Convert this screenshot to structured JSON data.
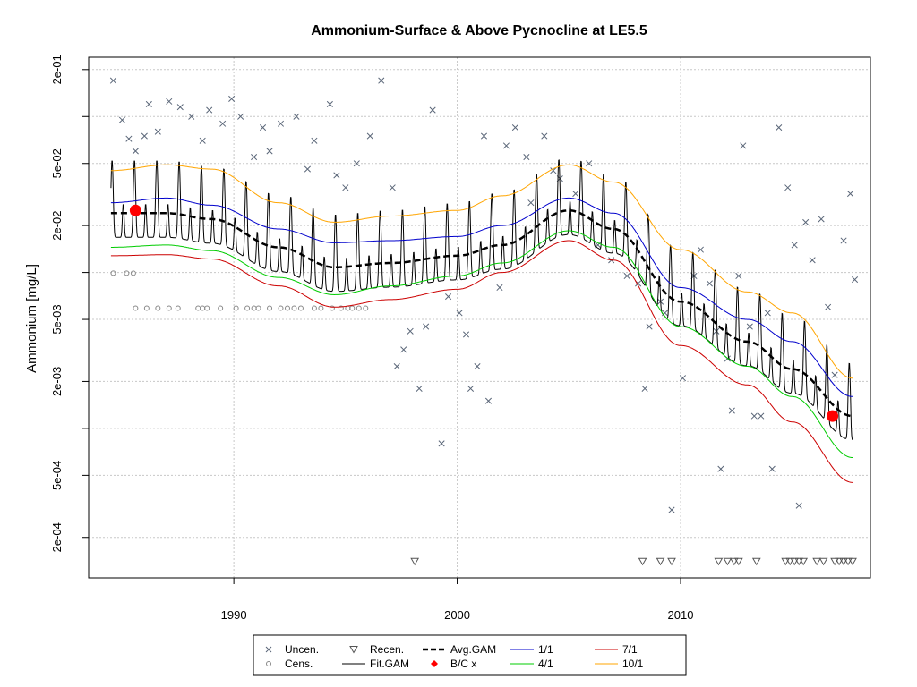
{
  "chart_data": {
    "type": "scatter",
    "title": "Ammonium-Surface & Above Pycnocline at LE5.5",
    "xlabel": "",
    "ylabel": "Ammonium [mg/L]",
    "y_scale": "log10",
    "ylim": [
      0.00011,
      0.24
    ],
    "xlim": [
      1983.5,
      2018.5
    ],
    "grid": true,
    "x_ticks": [
      1990,
      2000,
      2010
    ],
    "x_tick_labels": [
      "1990",
      "2000",
      "2010"
    ],
    "y_ticks": [
      0.0002,
      0.0005,
      0.002,
      0.005,
      0.02,
      0.05,
      0.2
    ],
    "y_tick_labels": [
      "2e-04",
      "5e-04",
      "2e-03",
      "5e-03",
      "2e-02",
      "5e-02",
      "2e-01"
    ],
    "y_minor_ticks": [
      0.001,
      0.01,
      0.1
    ],
    "legend_position": "bottom",
    "legend": [
      {
        "label": "Uncen.",
        "symbol": "x",
        "color": "#5a6678"
      },
      {
        "label": "Cens.",
        "symbol": "circle",
        "color": "#888888"
      },
      {
        "label": "Recen.",
        "symbol": "triangle-down",
        "color": "#555555"
      },
      {
        "label": "Fit.GAM",
        "symbol": "line",
        "color": "#000000"
      },
      {
        "label": "Avg.GAM",
        "symbol": "dashed-line",
        "color": "#000000"
      },
      {
        "label": "B/C x",
        "symbol": "dot",
        "color": "#ff0000"
      },
      {
        "label": "1/1",
        "symbol": "line",
        "color": "#0000cc"
      },
      {
        "label": "4/1",
        "symbol": "line",
        "color": "#00cc00"
      },
      {
        "label": "7/1",
        "symbol": "line",
        "color": "#cc0000"
      },
      {
        "label": "10/1",
        "symbol": "line",
        "color": "#ffa500"
      }
    ],
    "series": [
      {
        "name": "1/1",
        "color": "#0000cc",
        "x": [
          1984.5,
          1987,
          1989,
          1992,
          1994.5,
          1997,
          2000,
          2002,
          2005,
          2007,
          2010,
          2013,
          2015,
          2017.7
        ],
        "y": [
          0.028,
          0.03,
          0.027,
          0.019,
          0.0155,
          0.016,
          0.017,
          0.02,
          0.03,
          0.024,
          0.008,
          0.005,
          0.0036,
          0.0016
        ]
      },
      {
        "name": "4/1",
        "color": "#00cc00",
        "x": [
          1984.5,
          1987,
          1989,
          1992,
          1994.5,
          1997,
          2000,
          2002,
          2005,
          2007,
          2010,
          2013,
          2015,
          2017.7
        ],
        "y": [
          0.0145,
          0.015,
          0.0138,
          0.0093,
          0.0072,
          0.0082,
          0.0095,
          0.0115,
          0.0185,
          0.0145,
          0.0045,
          0.0025,
          0.0016,
          0.00065
        ]
      },
      {
        "name": "7/1",
        "color": "#cc0000",
        "x": [
          1984.5,
          1987,
          1989,
          1992,
          1994.5,
          1997,
          2000,
          2002,
          2005,
          2007,
          2010,
          2013,
          2015,
          2017.7
        ],
        "y": [
          0.0128,
          0.013,
          0.0122,
          0.0082,
          0.006,
          0.0067,
          0.0078,
          0.01,
          0.016,
          0.012,
          0.0034,
          0.0019,
          0.0011,
          0.00045
        ]
      },
      {
        "name": "10/1",
        "color": "#ffa500",
        "x": [
          1984.5,
          1987,
          1989,
          1992,
          1994.5,
          1997,
          2000,
          2002,
          2005,
          2007,
          2010,
          2013,
          2015,
          2017.7
        ],
        "y": [
          0.045,
          0.049,
          0.046,
          0.028,
          0.021,
          0.023,
          0.025,
          0.031,
          0.049,
          0.038,
          0.014,
          0.0075,
          0.0055,
          0.0021
        ]
      },
      {
        "name": "Avg.GAM",
        "color": "#000000",
        "dashed": true,
        "x": [
          1984.5,
          1987,
          1989,
          1992,
          1994.5,
          1997,
          2000,
          2002,
          2005,
          2007,
          2010,
          2013,
          2015,
          2017.7
        ],
        "y": [
          0.024,
          0.024,
          0.022,
          0.0145,
          0.0108,
          0.0115,
          0.0128,
          0.015,
          0.025,
          0.019,
          0.0065,
          0.0036,
          0.0024,
          0.0012
        ]
      }
    ],
    "fit_gam": {
      "x_start": 1984.5,
      "x_end": 2017.7,
      "peak_factor": 2.2,
      "trough_factor": 0.7
    },
    "bc_points": [
      {
        "x": 1985.6,
        "y": 0.025
      },
      {
        "x": 2016.8,
        "y": 0.0012
      }
    ],
    "uncensored": [
      {
        "x": 1984.6,
        "y": 0.17
      },
      {
        "x": 1985.0,
        "y": 0.095
      },
      {
        "x": 1985.3,
        "y": 0.072
      },
      {
        "x": 1985.6,
        "y": 0.06
      },
      {
        "x": 1986.0,
        "y": 0.075
      },
      {
        "x": 1986.2,
        "y": 0.12
      },
      {
        "x": 1986.6,
        "y": 0.08
      },
      {
        "x": 1987.1,
        "y": 0.125
      },
      {
        "x": 1987.6,
        "y": 0.115
      },
      {
        "x": 1988.1,
        "y": 0.1
      },
      {
        "x": 1988.6,
        "y": 0.07
      },
      {
        "x": 1988.9,
        "y": 0.11
      },
      {
        "x": 1989.5,
        "y": 0.09
      },
      {
        "x": 1989.9,
        "y": 0.13
      },
      {
        "x": 1990.3,
        "y": 0.1
      },
      {
        "x": 1990.9,
        "y": 0.055
      },
      {
        "x": 1991.3,
        "y": 0.085
      },
      {
        "x": 1991.6,
        "y": 0.06
      },
      {
        "x": 1992.1,
        "y": 0.09
      },
      {
        "x": 1992.8,
        "y": 0.1
      },
      {
        "x": 1993.3,
        "y": 0.046
      },
      {
        "x": 1993.6,
        "y": 0.07
      },
      {
        "x": 1994.3,
        "y": 0.12
      },
      {
        "x": 1994.6,
        "y": 0.042
      },
      {
        "x": 1995.0,
        "y": 0.035
      },
      {
        "x": 1995.5,
        "y": 0.05
      },
      {
        "x": 1996.1,
        "y": 0.075
      },
      {
        "x": 1996.6,
        "y": 0.17
      },
      {
        "x": 1997.1,
        "y": 0.035
      },
      {
        "x": 1997.3,
        "y": 0.0025
      },
      {
        "x": 1997.6,
        "y": 0.0032
      },
      {
        "x": 1997.9,
        "y": 0.0042
      },
      {
        "x": 1998.3,
        "y": 0.0018
      },
      {
        "x": 1998.6,
        "y": 0.0045
      },
      {
        "x": 1998.9,
        "y": 0.11
      },
      {
        "x": 1999.3,
        "y": 0.0008
      },
      {
        "x": 1999.6,
        "y": 0.007
      },
      {
        "x": 2000.1,
        "y": 0.0055
      },
      {
        "x": 2000.4,
        "y": 0.004
      },
      {
        "x": 2000.6,
        "y": 0.0018
      },
      {
        "x": 2000.9,
        "y": 0.0025
      },
      {
        "x": 2001.2,
        "y": 0.075
      },
      {
        "x": 2001.4,
        "y": 0.0015
      },
      {
        "x": 2001.9,
        "y": 0.008
      },
      {
        "x": 2002.2,
        "y": 0.065
      },
      {
        "x": 2002.6,
        "y": 0.085
      },
      {
        "x": 2003.1,
        "y": 0.055
      },
      {
        "x": 2003.3,
        "y": 0.028
      },
      {
        "x": 2003.9,
        "y": 0.075
      },
      {
        "x": 2004.3,
        "y": 0.045
      },
      {
        "x": 2004.6,
        "y": 0.04
      },
      {
        "x": 2005.3,
        "y": 0.032
      },
      {
        "x": 2005.9,
        "y": 0.05
      },
      {
        "x": 2006.3,
        "y": 0.015
      },
      {
        "x": 2006.9,
        "y": 0.012
      },
      {
        "x": 2007.6,
        "y": 0.0095
      },
      {
        "x": 2008.1,
        "y": 0.0085
      },
      {
        "x": 2008.4,
        "y": 0.0018
      },
      {
        "x": 2008.6,
        "y": 0.0045
      },
      {
        "x": 2009.1,
        "y": 0.0065
      },
      {
        "x": 2009.3,
        "y": 0.0055
      },
      {
        "x": 2009.6,
        "y": 0.0003
      },
      {
        "x": 2010.1,
        "y": 0.0021
      },
      {
        "x": 2010.6,
        "y": 0.0095
      },
      {
        "x": 2010.9,
        "y": 0.014
      },
      {
        "x": 2011.3,
        "y": 0.0085
      },
      {
        "x": 2011.6,
        "y": 0.0042
      },
      {
        "x": 2011.8,
        "y": 0.00055
      },
      {
        "x": 2012.1,
        "y": 0.0028
      },
      {
        "x": 2012.3,
        "y": 0.0013
      },
      {
        "x": 2012.6,
        "y": 0.0095
      },
      {
        "x": 2012.8,
        "y": 0.065
      },
      {
        "x": 2013.1,
        "y": 0.0045
      },
      {
        "x": 2013.3,
        "y": 0.0012
      },
      {
        "x": 2013.6,
        "y": 0.0012
      },
      {
        "x": 2013.9,
        "y": 0.0055
      },
      {
        "x": 2014.1,
        "y": 0.00055
      },
      {
        "x": 2014.4,
        "y": 0.085
      },
      {
        "x": 2014.8,
        "y": 0.035
      },
      {
        "x": 2015.1,
        "y": 0.015
      },
      {
        "x": 2015.3,
        "y": 0.00032
      },
      {
        "x": 2015.6,
        "y": 0.021
      },
      {
        "x": 2015.9,
        "y": 0.012
      },
      {
        "x": 2016.3,
        "y": 0.022
      },
      {
        "x": 2016.6,
        "y": 0.006
      },
      {
        "x": 2016.9,
        "y": 0.0022
      },
      {
        "x": 2017.3,
        "y": 0.016
      },
      {
        "x": 2017.6,
        "y": 0.032
      },
      {
        "x": 2017.8,
        "y": 0.009
      }
    ],
    "censored": [
      {
        "x": 1984.6,
        "y": 0.0099
      },
      {
        "x": 1985.2,
        "y": 0.0099
      },
      {
        "x": 1985.5,
        "y": 0.0099
      },
      {
        "x": 1985.6,
        "y": 0.0059
      },
      {
        "x": 1986.1,
        "y": 0.0059
      },
      {
        "x": 1986.6,
        "y": 0.0059
      },
      {
        "x": 1987.1,
        "y": 0.0059
      },
      {
        "x": 1987.5,
        "y": 0.0059
      },
      {
        "x": 1988.4,
        "y": 0.0059
      },
      {
        "x": 1988.6,
        "y": 0.0059
      },
      {
        "x": 1988.8,
        "y": 0.0059
      },
      {
        "x": 1989.4,
        "y": 0.0059
      },
      {
        "x": 1990.1,
        "y": 0.0059
      },
      {
        "x": 1990.6,
        "y": 0.0059
      },
      {
        "x": 1990.9,
        "y": 0.0059
      },
      {
        "x": 1991.1,
        "y": 0.0059
      },
      {
        "x": 1991.6,
        "y": 0.0059
      },
      {
        "x": 1992.1,
        "y": 0.0059
      },
      {
        "x": 1992.4,
        "y": 0.0059
      },
      {
        "x": 1992.7,
        "y": 0.0059
      },
      {
        "x": 1993.0,
        "y": 0.0059
      },
      {
        "x": 1993.6,
        "y": 0.0059
      },
      {
        "x": 1993.9,
        "y": 0.0059
      },
      {
        "x": 1994.4,
        "y": 0.0059
      },
      {
        "x": 1994.8,
        "y": 0.0059
      },
      {
        "x": 1995.1,
        "y": 0.0059
      },
      {
        "x": 1995.3,
        "y": 0.0059
      },
      {
        "x": 1995.6,
        "y": 0.0059
      },
      {
        "x": 1995.9,
        "y": 0.0059
      }
    ],
    "recensored": [
      {
        "x": 1998.1,
        "y": 0.00014
      },
      {
        "x": 2008.3,
        "y": 0.00014
      },
      {
        "x": 2009.1,
        "y": 0.00014
      },
      {
        "x": 2009.6,
        "y": 0.00014
      },
      {
        "x": 2011.7,
        "y": 0.00014
      },
      {
        "x": 2012.1,
        "y": 0.00014
      },
      {
        "x": 2012.4,
        "y": 0.00014
      },
      {
        "x": 2012.6,
        "y": 0.00014
      },
      {
        "x": 2013.4,
        "y": 0.00014
      },
      {
        "x": 2014.7,
        "y": 0.00014
      },
      {
        "x": 2014.9,
        "y": 0.00014
      },
      {
        "x": 2015.1,
        "y": 0.00014
      },
      {
        "x": 2015.3,
        "y": 0.00014
      },
      {
        "x": 2015.5,
        "y": 0.00014
      },
      {
        "x": 2016.1,
        "y": 0.00014
      },
      {
        "x": 2016.4,
        "y": 0.00014
      },
      {
        "x": 2016.9,
        "y": 0.00014
      },
      {
        "x": 2017.1,
        "y": 0.00014
      },
      {
        "x": 2017.3,
        "y": 0.00014
      },
      {
        "x": 2017.5,
        "y": 0.00014
      },
      {
        "x": 2017.7,
        "y": 0.00014
      }
    ]
  }
}
